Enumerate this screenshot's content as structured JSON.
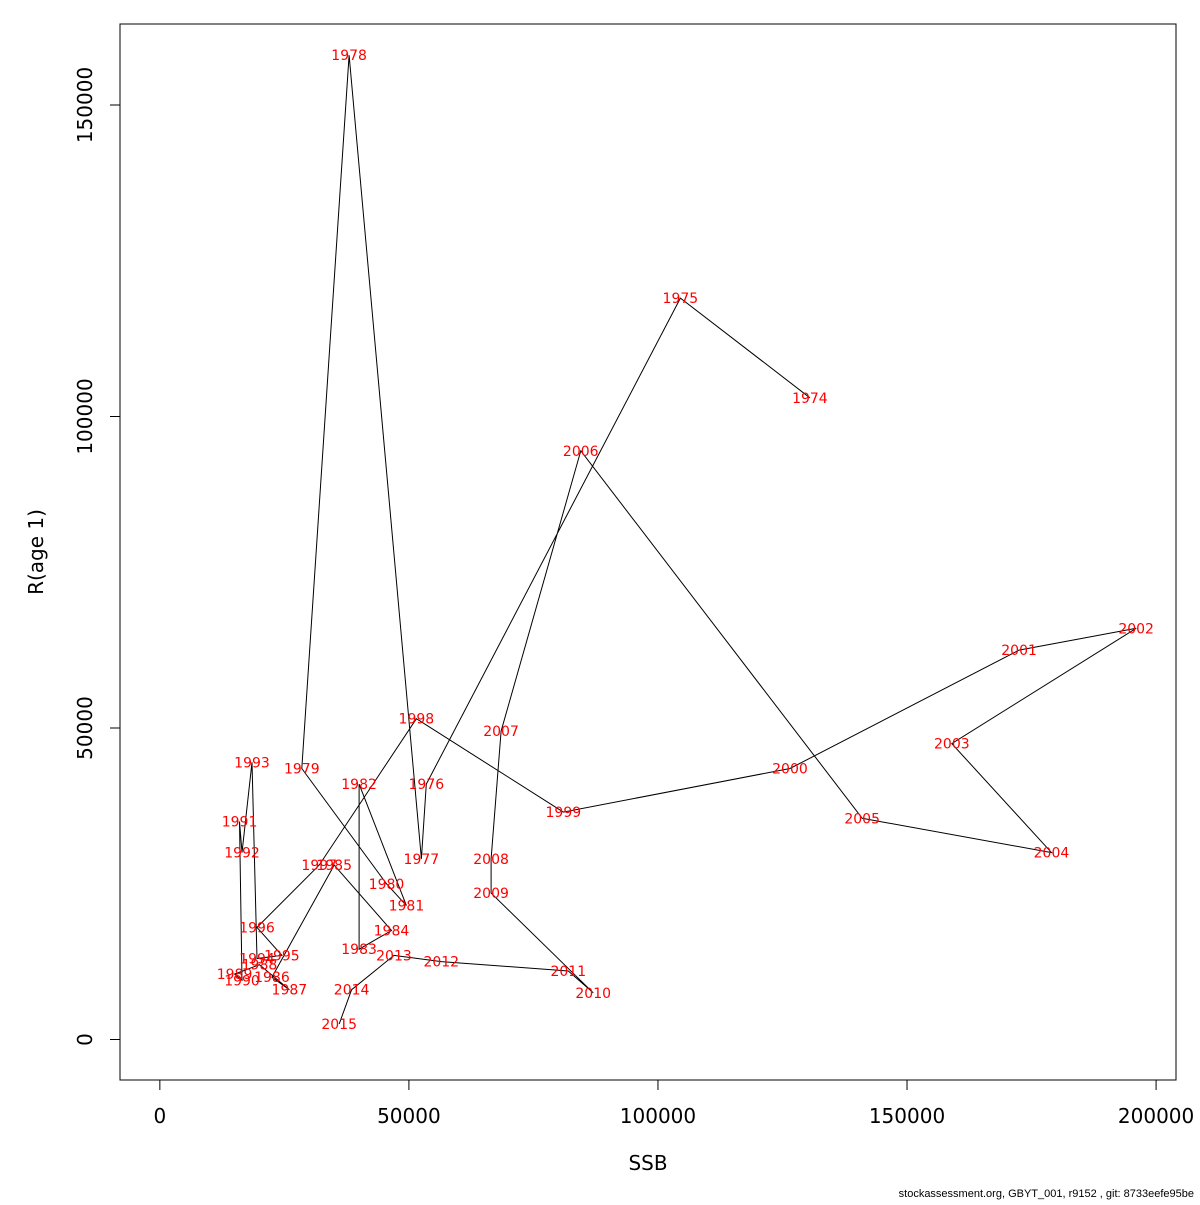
{
  "chart_data": {
    "type": "line",
    "xlabel": "SSB",
    "ylabel": "R(age 1)",
    "xlim": [
      -8000,
      204000
    ],
    "ylim": [
      -6500,
      163000
    ],
    "x_ticks": [
      0,
      50000,
      100000,
      150000,
      200000
    ],
    "x_tick_labels": [
      "0",
      "50000",
      "100000",
      "150000",
      "200000"
    ],
    "y_ticks": [
      0,
      50000,
      100000,
      150000
    ],
    "y_tick_labels": [
      "0",
      "50000",
      "100000",
      "150000"
    ],
    "grid": false,
    "point_label_color": "#ff0000",
    "line_color": "#000000",
    "points": [
      {
        "label": "1974",
        "x": 130500,
        "y": 103000
      },
      {
        "label": "1975",
        "x": 104500,
        "y": 119000
      },
      {
        "label": "1976",
        "x": 53500,
        "y": 41000
      },
      {
        "label": "1977",
        "x": 52500,
        "y": 29000
      },
      {
        "label": "1978",
        "x": 38000,
        "y": 158000
      },
      {
        "label": "1979",
        "x": 28500,
        "y": 43500
      },
      {
        "label": "1980",
        "x": 45500,
        "y": 25000
      },
      {
        "label": "1981",
        "x": 49500,
        "y": 21500
      },
      {
        "label": "1982",
        "x": 40000,
        "y": 41000
      },
      {
        "label": "1983",
        "x": 40000,
        "y": 14500
      },
      {
        "label": "1984",
        "x": 46500,
        "y": 17500
      },
      {
        "label": "1985",
        "x": 35000,
        "y": 28000
      },
      {
        "label": "1986",
        "x": 22500,
        "y": 10000
      },
      {
        "label": "1987",
        "x": 26000,
        "y": 8000
      },
      {
        "label": "1988",
        "x": 20000,
        "y": 12000
      },
      {
        "label": "1989",
        "x": 15000,
        "y": 10500
      },
      {
        "label": "1990",
        "x": 16500,
        "y": 9500
      },
      {
        "label": "1991",
        "x": 16000,
        "y": 35000
      },
      {
        "label": "1992",
        "x": 16500,
        "y": 30000
      },
      {
        "label": "1993",
        "x": 18500,
        "y": 44500
      },
      {
        "label": "1994",
        "x": 19500,
        "y": 13000
      },
      {
        "label": "1995",
        "x": 24500,
        "y": 13500
      },
      {
        "label": "1996",
        "x": 19500,
        "y": 18000
      },
      {
        "label": "1997",
        "x": 32000,
        "y": 28000
      },
      {
        "label": "1998",
        "x": 51500,
        "y": 51500
      },
      {
        "label": "1999",
        "x": 81000,
        "y": 36500
      },
      {
        "label": "2000",
        "x": 126500,
        "y": 43500
      },
      {
        "label": "2001",
        "x": 172500,
        "y": 62500
      },
      {
        "label": "2002",
        "x": 196000,
        "y": 66000
      },
      {
        "label": "2003",
        "x": 159000,
        "y": 47500
      },
      {
        "label": "2004",
        "x": 179000,
        "y": 30000
      },
      {
        "label": "2005",
        "x": 141000,
        "y": 35500
      },
      {
        "label": "2006",
        "x": 84500,
        "y": 94500
      },
      {
        "label": "2007",
        "x": 68500,
        "y": 49500
      },
      {
        "label": "2008",
        "x": 66500,
        "y": 29000
      },
      {
        "label": "2009",
        "x": 66500,
        "y": 23500
      },
      {
        "label": "2010",
        "x": 87000,
        "y": 7500
      },
      {
        "label": "2011",
        "x": 82000,
        "y": 11000
      },
      {
        "label": "2012",
        "x": 56500,
        "y": 12500
      },
      {
        "label": "2013",
        "x": 47000,
        "y": 13500
      },
      {
        "label": "2014",
        "x": 38500,
        "y": 8000
      },
      {
        "label": "2015",
        "x": 36000,
        "y": 2500
      }
    ]
  },
  "footer": {
    "text": "stockassessment.org, GBYT_001, r9152 , git: 8733eefe95be"
  }
}
